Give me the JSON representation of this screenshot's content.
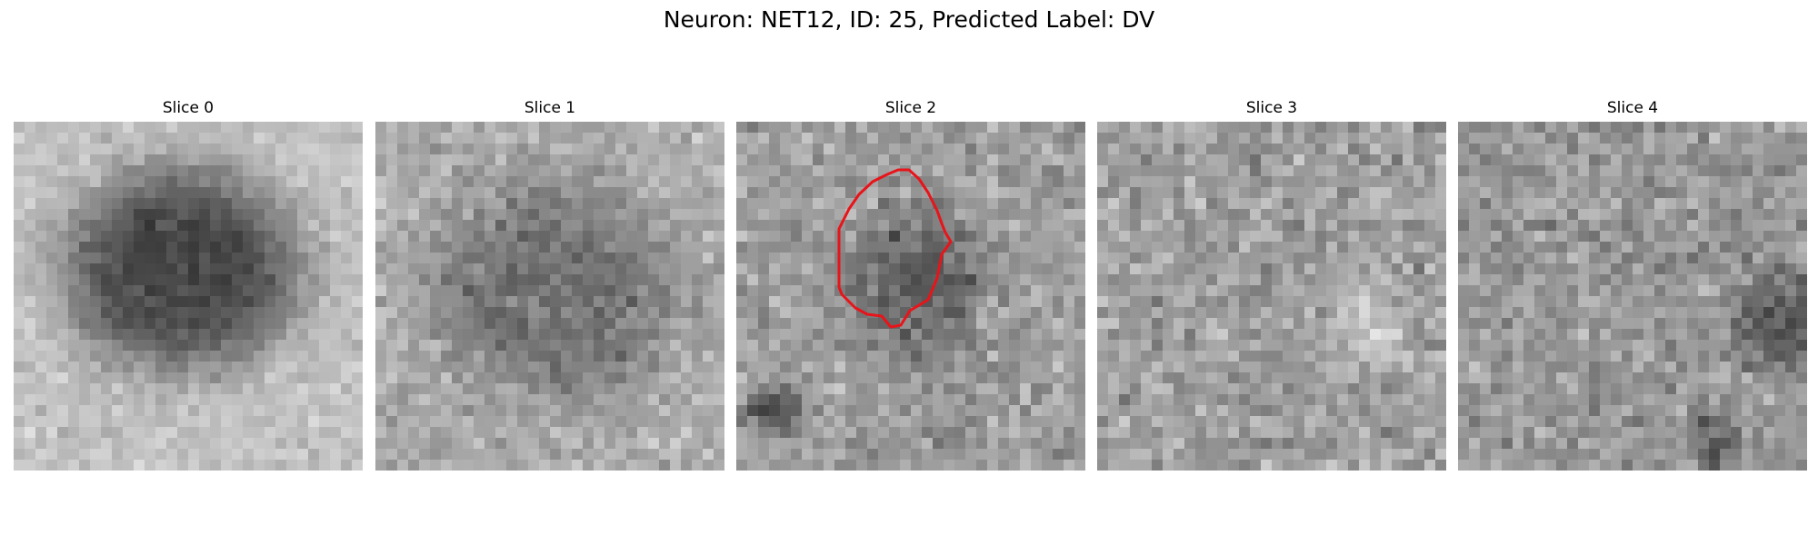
{
  "figure": {
    "title": "Neuron: NET12, ID: 25, Predicted Label: DV"
  },
  "colors": {
    "contour": "#e8141a",
    "background": "#ffffff"
  },
  "image_grid": {
    "rows": 32,
    "cols": 32,
    "colormap": "gray"
  },
  "slices": [
    {
      "title": "Slice 0",
      "has_contour": false
    },
    {
      "title": "Slice 1",
      "has_contour": false
    },
    {
      "title": "Slice 2",
      "has_contour": true
    },
    {
      "title": "Slice 3",
      "has_contour": false
    },
    {
      "title": "Slice 4",
      "has_contour": false
    }
  ]
}
